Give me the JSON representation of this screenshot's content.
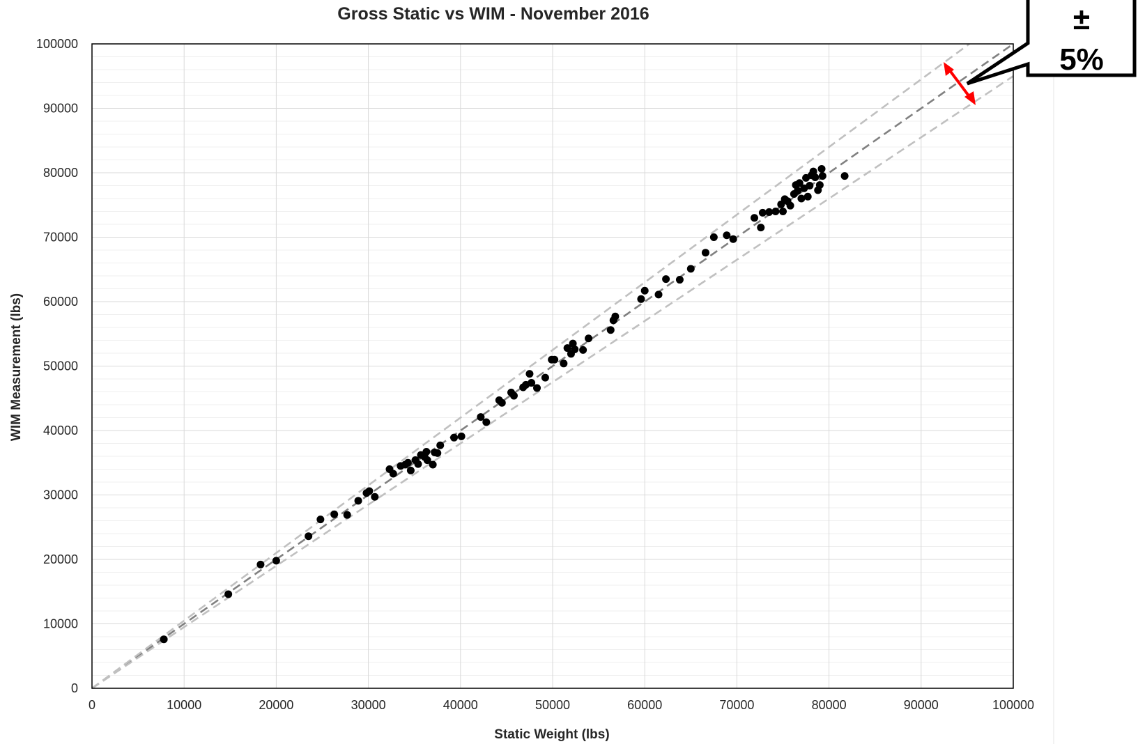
{
  "chart_data": {
    "type": "scatter",
    "title": "Gross Static vs WIM - November 2016",
    "xlabel": "Static Weight (lbs)",
    "ylabel": "WIM Measurement (lbs)",
    "xlim": [
      0,
      100000
    ],
    "ylim": [
      0,
      100000
    ],
    "x_ticks": [
      "0",
      "10000",
      "20000",
      "30000",
      "40000",
      "50000",
      "60000",
      "70000",
      "80000",
      "90000",
      "100000"
    ],
    "y_ticks": [
      "0",
      "10000",
      "20000",
      "30000",
      "40000",
      "50000",
      "60000",
      "70000",
      "80000",
      "90000",
      "100000"
    ],
    "grid": true,
    "minor_grid_y": true,
    "reference_lines": [
      {
        "slope": 1.0,
        "style": "dashed",
        "color": "#808080"
      },
      {
        "slope": 1.05,
        "style": "dashed",
        "color": "#c0c0c0"
      },
      {
        "slope": 0.95,
        "style": "dashed",
        "color": "#c0c0c0"
      }
    ],
    "callout": {
      "symbol": "±",
      "value": "5%",
      "arrow_color": "#ff0000"
    },
    "series": [
      {
        "color": "#000000",
        "points": [
          [
            7800,
            7600
          ],
          [
            14800,
            14600
          ],
          [
            18300,
            19200
          ],
          [
            20000,
            19800
          ],
          [
            23500,
            23600
          ],
          [
            24800,
            26200
          ],
          [
            26300,
            27000
          ],
          [
            27700,
            26900
          ],
          [
            28900,
            29100
          ],
          [
            29800,
            30300
          ],
          [
            30100,
            30600
          ],
          [
            30700,
            29700
          ],
          [
            32300,
            34000
          ],
          [
            32700,
            33300
          ],
          [
            33500,
            34500
          ],
          [
            34000,
            34700
          ],
          [
            34300,
            35000
          ],
          [
            34600,
            33800
          ],
          [
            35100,
            35400
          ],
          [
            35400,
            34800
          ],
          [
            35700,
            36200
          ],
          [
            36100,
            35900
          ],
          [
            36300,
            36700
          ],
          [
            36400,
            35400
          ],
          [
            37000,
            34700
          ],
          [
            37200,
            36600
          ],
          [
            37500,
            36500
          ],
          [
            37800,
            37700
          ],
          [
            39300,
            38900
          ],
          [
            40100,
            39100
          ],
          [
            42200,
            42100
          ],
          [
            42800,
            41300
          ],
          [
            44200,
            44700
          ],
          [
            44500,
            44300
          ],
          [
            45500,
            45900
          ],
          [
            45800,
            45400
          ],
          [
            46800,
            46700
          ],
          [
            47100,
            47100
          ],
          [
            47500,
            48800
          ],
          [
            47700,
            47400
          ],
          [
            48300,
            46600
          ],
          [
            49200,
            48200
          ],
          [
            49900,
            51000
          ],
          [
            50200,
            51000
          ],
          [
            51200,
            50400
          ],
          [
            51600,
            52800
          ],
          [
            52000,
            51900
          ],
          [
            52200,
            53500
          ],
          [
            52400,
            52600
          ],
          [
            53300,
            52500
          ],
          [
            53900,
            54300
          ],
          [
            56300,
            55600
          ],
          [
            56600,
            57100
          ],
          [
            56800,
            57700
          ],
          [
            59600,
            60400
          ],
          [
            60000,
            61700
          ],
          [
            61500,
            61100
          ],
          [
            62300,
            63500
          ],
          [
            63800,
            63400
          ],
          [
            65000,
            65100
          ],
          [
            66600,
            67600
          ],
          [
            67500,
            70000
          ],
          [
            68900,
            70300
          ],
          [
            69600,
            69700
          ],
          [
            71900,
            73000
          ],
          [
            72600,
            71500
          ],
          [
            72800,
            73800
          ],
          [
            73500,
            73900
          ],
          [
            74200,
            74000
          ],
          [
            74800,
            75100
          ],
          [
            75000,
            74000
          ],
          [
            75200,
            75900
          ],
          [
            75500,
            75600
          ],
          [
            75800,
            74900
          ],
          [
            76200,
            76700
          ],
          [
            76400,
            78100
          ],
          [
            76600,
            77200
          ],
          [
            76800,
            78400
          ],
          [
            77000,
            76000
          ],
          [
            77300,
            77600
          ],
          [
            77500,
            79200
          ],
          [
            77700,
            76300
          ],
          [
            77900,
            78000
          ],
          [
            78100,
            79600
          ],
          [
            78300,
            80200
          ],
          [
            78500,
            79300
          ],
          [
            78800,
            77300
          ],
          [
            79000,
            78100
          ],
          [
            79200,
            80600
          ],
          [
            79300,
            79500
          ],
          [
            81700,
            79500
          ]
        ]
      }
    ]
  }
}
